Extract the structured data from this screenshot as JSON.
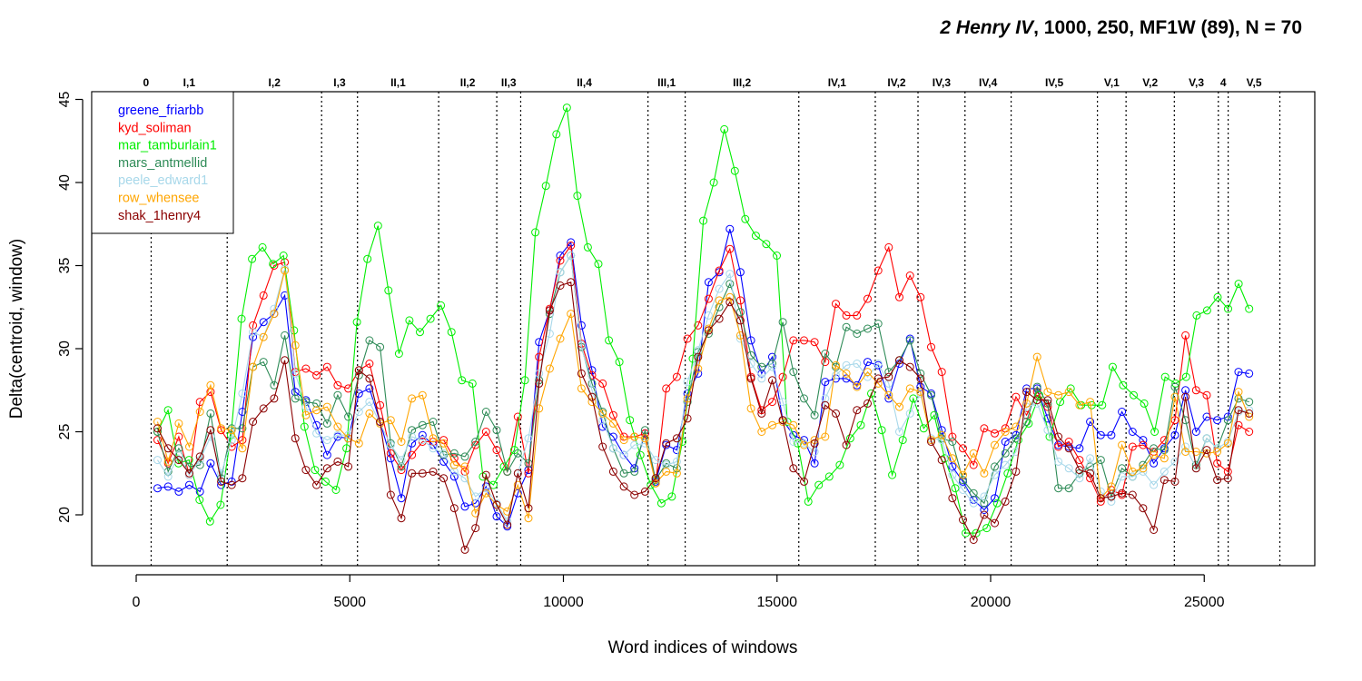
{
  "chart_data": {
    "type": "line",
    "title_parts": [
      "2 Henry IV",
      ", 1000, 250, MF1W (89), N = 70"
    ],
    "xlabel": "Word indices of windows",
    "ylabel": "Delta(centroid, window)",
    "xlim": [
      -1000,
      27400
    ],
    "ylim": [
      17.5,
      45.5
    ],
    "xticks": [
      0,
      5000,
      10000,
      15000,
      20000,
      25000
    ],
    "xtick_labels": [
      "0",
      "5000",
      "10000",
      "15000",
      "20000",
      "25000"
    ],
    "yticks": [
      20,
      25,
      30,
      35,
      40,
      45
    ],
    "ytick_labels": [
      "20",
      "25",
      "30",
      "35",
      "40",
      "45"
    ],
    "grid": false,
    "legend_position": "top-left",
    "markers": "open-circle",
    "scene_boundaries": [
      350,
      2130,
      4340,
      5180,
      7080,
      8440,
      9000,
      11980,
      12850,
      15510,
      17300,
      18300,
      19400,
      20480,
      22500,
      23170,
      24300,
      25330,
      25560,
      26770
    ],
    "scene_labels": [
      {
        "x": 230,
        "label": "0"
      },
      {
        "x": 1240,
        "label": "I,1"
      },
      {
        "x": 3235,
        "label": "I,2"
      },
      {
        "x": 4760,
        "label": "I,3"
      },
      {
        "x": 6130,
        "label": "II,1"
      },
      {
        "x": 7760,
        "label": "II,2"
      },
      {
        "x": 8720,
        "label": "II,3"
      },
      {
        "x": 10490,
        "label": "II,4"
      },
      {
        "x": 12415,
        "label": "III,1"
      },
      {
        "x": 14180,
        "label": "III,2"
      },
      {
        "x": 16405,
        "label": "IV,1"
      },
      {
        "x": 17800,
        "label": "IV,2"
      },
      {
        "x": 18850,
        "label": "IV,3"
      },
      {
        "x": 19940,
        "label": "IV,4"
      },
      {
        "x": 21490,
        "label": "IV,5"
      },
      {
        "x": 22835,
        "label": "V,1"
      },
      {
        "x": 23735,
        "label": "V,2"
      },
      {
        "x": 24815,
        "label": "V,3"
      },
      {
        "x": 25445,
        "label": "4"
      },
      {
        "x": 26165,
        "label": "V,5"
      }
    ],
    "series": [
      {
        "name": "greene_friarbb",
        "color": "#0000FF",
        "values": [
          21.6,
          21.7,
          21.4,
          21.8,
          21.4,
          23.1,
          21.8,
          22.0,
          26.2,
          30.7,
          31.6,
          32.1,
          33.2,
          27.4,
          26.9,
          25.4,
          23.6,
          24.7,
          24.6,
          27.3,
          27.6,
          25.6,
          23.4,
          21.0,
          24.3,
          24.8,
          24.2,
          23.2,
          22.3,
          20.5,
          20.7,
          21.7,
          19.9,
          19.3,
          21.3,
          22.7,
          30.4,
          32.3,
          35.6,
          36.4,
          31.4,
          28.7,
          25.3,
          24.7,
          23.6,
          22.8,
          24.9,
          22.0,
          24.2,
          23.9,
          27.3,
          28.5,
          34.0,
          34.6,
          37.2,
          34.6,
          30.5,
          28.5,
          29.5,
          25.7,
          24.8,
          24.5,
          23.1,
          28.0,
          28.2,
          28.2,
          27.8,
          29.2,
          29.0,
          27.0,
          29.1,
          30.6,
          27.7,
          27.3,
          25.1,
          22.9,
          22.0,
          20.9,
          20.3,
          21.0,
          24.4,
          24.8,
          27.6,
          27.6,
          25.8,
          24.2,
          24.1,
          24.0,
          25.6,
          24.8,
          24.8,
          26.2,
          25.0,
          24.5,
          23.1,
          24.0,
          24.8,
          27.5,
          25.0,
          25.9,
          25.7,
          25.9,
          28.6,
          28.5
        ]
      },
      {
        "name": "kyd_soliman",
        "color": "#FF0000",
        "values": [
          24.5,
          23.1,
          24.7,
          22.4,
          26.8,
          27.4,
          25.1,
          24.1,
          24.5,
          31.4,
          33.2,
          35.0,
          35.2,
          28.6,
          28.8,
          28.4,
          28.9,
          27.8,
          27.6,
          28.7,
          29.1,
          26.6,
          23.7,
          22.7,
          23.6,
          24.4,
          24.4,
          24.5,
          23.4,
          22.6,
          24.2,
          25.0,
          23.9,
          22.6,
          25.9,
          22.5,
          29.5,
          32.4,
          35.3,
          36.2,
          30.3,
          28.4,
          27.9,
          26.0,
          24.7,
          24.7,
          24.9,
          21.9,
          27.6,
          28.3,
          30.6,
          31.4,
          33.0,
          34.7,
          36.0,
          32.9,
          28.3,
          26.3,
          26.8,
          28.3,
          30.5,
          30.5,
          30.4,
          29.2,
          32.7,
          32.0,
          32.0,
          33.0,
          34.7,
          36.1,
          33.1,
          34.4,
          33.1,
          30.1,
          28.6,
          24.7,
          24.0,
          23.0,
          25.2,
          24.9,
          25.2,
          27.1,
          26.0,
          27.4,
          26.5,
          24.1,
          24.4,
          23.3,
          22.2,
          20.8,
          21.5,
          21.2,
          24.1,
          24.2,
          23.8,
          24.5,
          25.7,
          30.8,
          27.5,
          27.2,
          23.1,
          22.6,
          25.4,
          25.0
        ]
      },
      {
        "name": "mar_tamburlain1",
        "color": "#00EE00",
        "values": [
          25.0,
          26.3,
          23.1,
          23.3,
          20.9,
          19.6,
          20.6,
          24.8,
          31.8,
          35.4,
          36.1,
          35.1,
          35.6,
          31.1,
          25.3,
          22.7,
          22.0,
          21.5,
          24.0,
          31.6,
          35.4,
          37.4,
          33.5,
          29.7,
          31.7,
          31.0,
          31.8,
          32.6,
          31.0,
          28.1,
          27.9,
          22.3,
          21.8,
          22.9,
          23.9,
          28.1,
          37.0,
          39.8,
          42.9,
          44.5,
          39.2,
          36.1,
          35.1,
          30.5,
          29.2,
          25.7,
          23.6,
          21.8,
          20.7,
          21.1,
          24.4,
          29.4,
          37.7,
          40.0,
          43.2,
          40.7,
          37.8,
          36.8,
          36.3,
          35.6,
          25.6,
          24.3,
          20.8,
          21.8,
          22.3,
          23.0,
          24.6,
          25.4,
          27.3,
          25.1,
          22.4,
          24.5,
          27.0,
          25.2,
          26.0,
          23.4,
          21.6,
          18.9,
          18.9,
          19.2,
          20.7,
          22.5,
          24.5,
          25.5,
          27.2,
          24.7,
          26.8,
          27.6,
          26.6,
          26.6,
          26.6,
          28.9,
          27.8,
          27.2,
          26.7,
          25.0,
          28.3,
          27.9,
          28.3,
          32.0,
          32.3,
          33.1,
          32.4,
          33.9,
          32.4
        ]
      },
      {
        "name": "mars_antmellid",
        "color": "#2E8B57",
        "values": [
          25.0,
          22.6,
          24.0,
          22.9,
          23.0,
          26.1,
          22.2,
          25.2,
          25.2,
          28.9,
          29.2,
          27.8,
          30.8,
          27.0,
          26.8,
          26.7,
          25.5,
          27.2,
          25.9,
          28.4,
          30.5,
          30.1,
          24.3,
          22.9,
          25.1,
          25.4,
          25.6,
          23.6,
          23.7,
          23.5,
          24.4,
          26.2,
          25.1,
          22.6,
          23.7,
          23.1,
          28.1,
          32.1,
          34.6,
          35.6,
          30.1,
          27.9,
          26.2,
          24.0,
          22.5,
          22.6,
          25.1,
          22.1,
          23.1,
          22.8,
          26.8,
          29.8,
          30.9,
          32.5,
          33.9,
          32.2,
          29.6,
          28.9,
          29.1,
          31.6,
          28.6,
          27.0,
          26.0,
          29.7,
          28.9,
          31.3,
          30.9,
          31.2,
          31.5,
          28.6,
          29.3,
          30.5,
          28.5,
          27.2,
          24.6,
          24.4,
          22.1,
          21.3,
          20.7,
          22.9,
          23.7,
          24.6,
          25.6,
          27.7,
          26.7,
          21.6,
          21.6,
          22.5,
          22.9,
          23.3,
          21.1,
          22.8,
          22.3,
          23.0,
          24.0,
          23.9,
          27.7,
          25.7,
          23.0,
          24.6,
          24.0,
          25.7,
          27.0,
          26.8
        ]
      },
      {
        "name": "peele_edward1",
        "color": "#A8D8EA",
        "values": [
          23.3,
          22.3,
          23.6,
          22.4,
          23.3,
          24.7,
          22.5,
          24.5,
          27.3,
          31.0,
          30.7,
          32.4,
          34.8,
          28.5,
          26.5,
          24.9,
          24.5,
          24.8,
          24.8,
          26.2,
          26.8,
          25.5,
          24.2,
          23.3,
          24.7,
          24.5,
          24.0,
          23.7,
          22.6,
          22.2,
          21.1,
          21.6,
          20.7,
          19.6,
          22.5,
          24.6,
          28.5,
          30.9,
          34.6,
          35.6,
          30.2,
          27.5,
          25.7,
          24.0,
          23.6,
          24.2,
          24.3,
          23.3,
          23.0,
          23.2,
          28.0,
          29.9,
          32.0,
          33.6,
          34.5,
          30.6,
          29.1,
          28.2,
          28.9,
          26.8,
          24.4,
          24.3,
          23.8,
          27.0,
          28.4,
          29.0,
          29.1,
          28.3,
          29.1,
          27.9,
          25.0,
          26.1,
          27.3,
          24.6,
          24.5,
          22.4,
          21.5,
          20.7,
          21.1,
          22.4,
          23.0,
          23.8,
          26.5,
          26.7,
          25.1,
          23.2,
          22.8,
          22.2,
          23.4,
          21.4,
          20.8,
          22.3,
          22.3,
          22.6,
          21.8,
          22.6,
          23.2,
          24.1,
          22.8,
          24.6,
          24.0,
          24.4,
          26.2,
          26.3
        ]
      },
      {
        "name": "row_whensee",
        "color": "#FFA500",
        "values": [
          25.6,
          23.2,
          25.5,
          24.1,
          26.2,
          27.8,
          25.2,
          25.1,
          24.0,
          28.9,
          30.7,
          32.1,
          34.7,
          30.2,
          26.0,
          26.3,
          26.5,
          25.3,
          24.6,
          24.3,
          26.1,
          25.5,
          25.7,
          24.4,
          27.0,
          27.2,
          24.6,
          24.3,
          23.0,
          22.9,
          20.1,
          21.3,
          20.6,
          20.2,
          21.8,
          19.8,
          26.4,
          28.8,
          30.6,
          32.1,
          27.6,
          26.8,
          26.1,
          25.5,
          24.5,
          24.7,
          24.6,
          21.9,
          22.6,
          22.5,
          27.0,
          28.8,
          31.2,
          32.9,
          33.1,
          30.8,
          26.4,
          25.0,
          25.4,
          25.6,
          25.4,
          24.2,
          24.5,
          24.7,
          29.0,
          28.5,
          27.7,
          28.6,
          27.9,
          27.2,
          26.5,
          27.6,
          27.4,
          24.5,
          24.8,
          23.4,
          22.4,
          23.7,
          22.5,
          24.2,
          25.0,
          25.3,
          26.7,
          29.5,
          27.4,
          27.2,
          27.4,
          26.6,
          26.8,
          21.0,
          21.7,
          24.2,
          22.6,
          22.8,
          23.6,
          23.4,
          27.1,
          23.8,
          23.8,
          23.7,
          23.8,
          24.3,
          27.4,
          25.9
        ]
      },
      {
        "name": "shak_1henry4",
        "color": "#8B0000",
        "values": [
          25.2,
          24.0,
          23.3,
          22.5,
          23.5,
          25.1,
          22.0,
          21.8,
          22.2,
          25.6,
          26.4,
          27.0,
          29.3,
          24.6,
          22.7,
          21.8,
          22.8,
          23.2,
          22.9,
          28.7,
          28.2,
          25.6,
          21.2,
          19.8,
          22.5,
          22.5,
          22.6,
          22.2,
          20.4,
          17.9,
          19.2,
          22.4,
          20.6,
          19.4,
          22.5,
          20.4,
          27.9,
          32.3,
          33.8,
          34.0,
          28.5,
          27.1,
          24.1,
          22.6,
          21.7,
          21.2,
          21.4,
          22.2,
          24.3,
          24.6,
          25.8,
          29.5,
          31.1,
          31.8,
          32.8,
          31.7,
          28.2,
          26.1,
          28.1,
          25.7,
          22.8,
          22.0,
          24.3,
          26.6,
          26.1,
          24.2,
          26.3,
          26.7,
          28.2,
          28.3,
          29.3,
          28.9,
          28.2,
          24.4,
          23.3,
          21.0,
          19.7,
          18.5,
          20.0,
          19.5,
          20.8,
          22.6,
          27.4,
          26.9,
          26.9,
          24.7,
          24.0,
          22.7,
          22.5,
          21.0,
          21.1,
          21.3,
          21.2,
          20.4,
          19.1,
          22.1,
          22.0,
          27.1,
          22.8,
          23.9,
          22.1,
          22.2,
          26.3,
          26.1
        ]
      }
    ]
  }
}
